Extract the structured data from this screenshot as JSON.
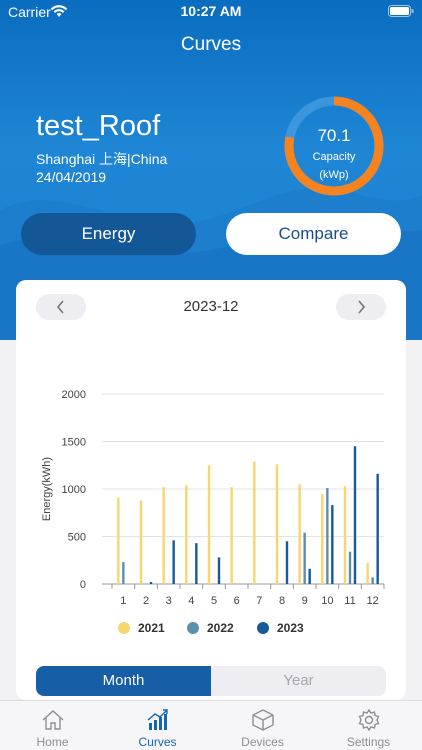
{
  "status": {
    "carrier": "Carrier",
    "time": "10:27 AM"
  },
  "nav": {
    "title": "Curves"
  },
  "site": {
    "name": "test_Roof",
    "location": "Shanghai 上海|China",
    "date": "24/04/2019"
  },
  "capacity": {
    "value": "70.1",
    "label": "Capacity",
    "unit": "(kWp)",
    "fill_fraction": 0.78
  },
  "mode_buttons": {
    "energy": "Energy",
    "compare": "Compare"
  },
  "period": {
    "label": "2023-12"
  },
  "chart_data": {
    "type": "bar",
    "ylabel": "Energy(kWh)",
    "ylim": [
      0,
      2000
    ],
    "yticks": [
      0,
      500,
      1000,
      1500,
      2000
    ],
    "categories": [
      "1",
      "2",
      "3",
      "4",
      "5",
      "6",
      "7",
      "8",
      "9",
      "10",
      "11",
      "12"
    ],
    "series": [
      {
        "name": "2021",
        "color": "#f5d76e",
        "values": [
          910,
          880,
          1020,
          1040,
          1250,
          1020,
          1290,
          1260,
          1050,
          950,
          1030,
          220
        ]
      },
      {
        "name": "2022",
        "color": "#5c8fae",
        "values": [
          230,
          0,
          0,
          0,
          0,
          0,
          0,
          0,
          540,
          1010,
          340,
          70
        ]
      },
      {
        "name": "2023",
        "color": "#175a9c",
        "values": [
          0,
          20,
          460,
          430,
          280,
          0,
          0,
          450,
          160,
          830,
          1450,
          1160
        ]
      }
    ],
    "grid": true
  },
  "segment": {
    "month": "Month",
    "year": "Year"
  },
  "tabs": [
    {
      "label": "Home",
      "icon": "home-icon"
    },
    {
      "label": "Curves",
      "icon": "chart-icon"
    },
    {
      "label": "Devices",
      "icon": "box-icon"
    },
    {
      "label": "Settings",
      "icon": "gear-icon"
    }
  ]
}
